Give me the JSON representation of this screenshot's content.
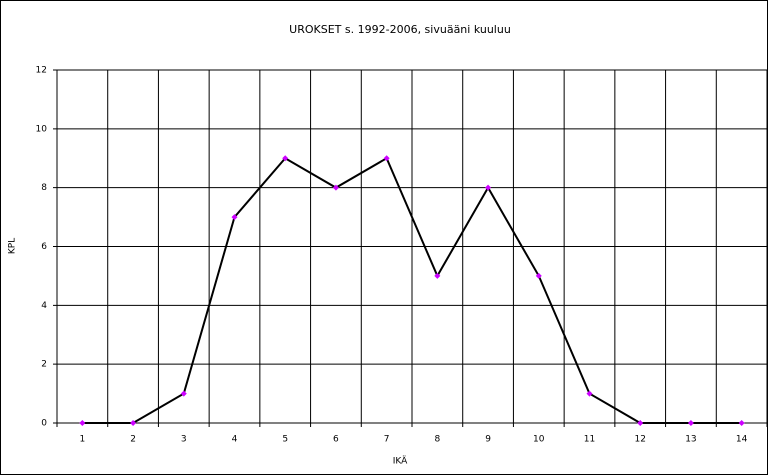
{
  "chart_data": {
    "type": "line",
    "title": "UROKSET s. 1992-2006, sivuääni kuuluu",
    "x_label": "IKÄ",
    "y_label": "KPL",
    "categories": [
      "1",
      "2",
      "3",
      "4",
      "5",
      "6",
      "7",
      "8",
      "9",
      "10",
      "11",
      "12",
      "13",
      "14"
    ],
    "values": [
      0,
      0,
      1,
      7,
      9,
      8,
      9,
      5,
      8,
      5,
      1,
      0,
      0,
      0
    ],
    "color": "#000000",
    "marker_color": "#cc00ff",
    "ylim": [
      0,
      12
    ],
    "yticks": [
      0,
      2,
      4,
      6,
      8,
      10,
      12
    ],
    "grid": true
  }
}
